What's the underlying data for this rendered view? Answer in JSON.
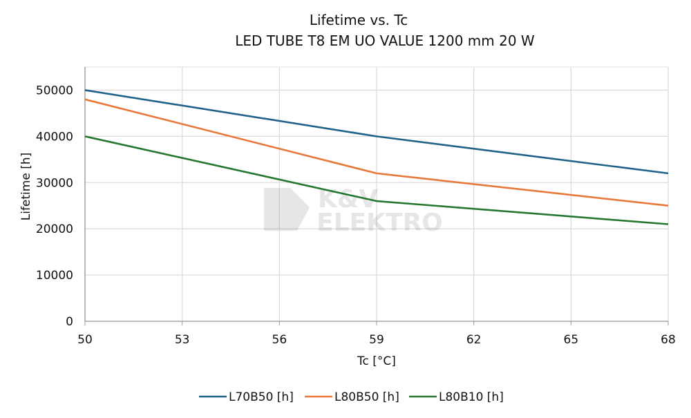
{
  "chart_data": {
    "type": "line",
    "title": "Lifetime vs. Tc",
    "subtitle": "LED TUBE T8 EM UO VALUE 1200 mm 20 W",
    "xlabel": "Tc [°C]",
    "ylabel": "Lifetime [h]",
    "x": [
      50,
      59,
      68
    ],
    "xlim": [
      50,
      68
    ],
    "ylim": [
      0,
      55000
    ],
    "xticks": [
      50,
      53,
      56,
      59,
      62,
      65,
      68
    ],
    "yticks": [
      0,
      10000,
      20000,
      30000,
      40000,
      50000
    ],
    "grid": true,
    "legend_position": "bottom",
    "series": [
      {
        "name": "L70B50 [h]",
        "values": [
          50000,
          40000,
          32000
        ],
        "color": "#1f6189"
      },
      {
        "name": "L80B50 [h]",
        "values": [
          48000,
          32000,
          25000
        ],
        "color": "#e8773a"
      },
      {
        "name": "L80B10 [h]",
        "values": [
          40000,
          26000,
          21000
        ],
        "color": "#25772e"
      }
    ],
    "watermark": "K&V ELEKTRO"
  }
}
